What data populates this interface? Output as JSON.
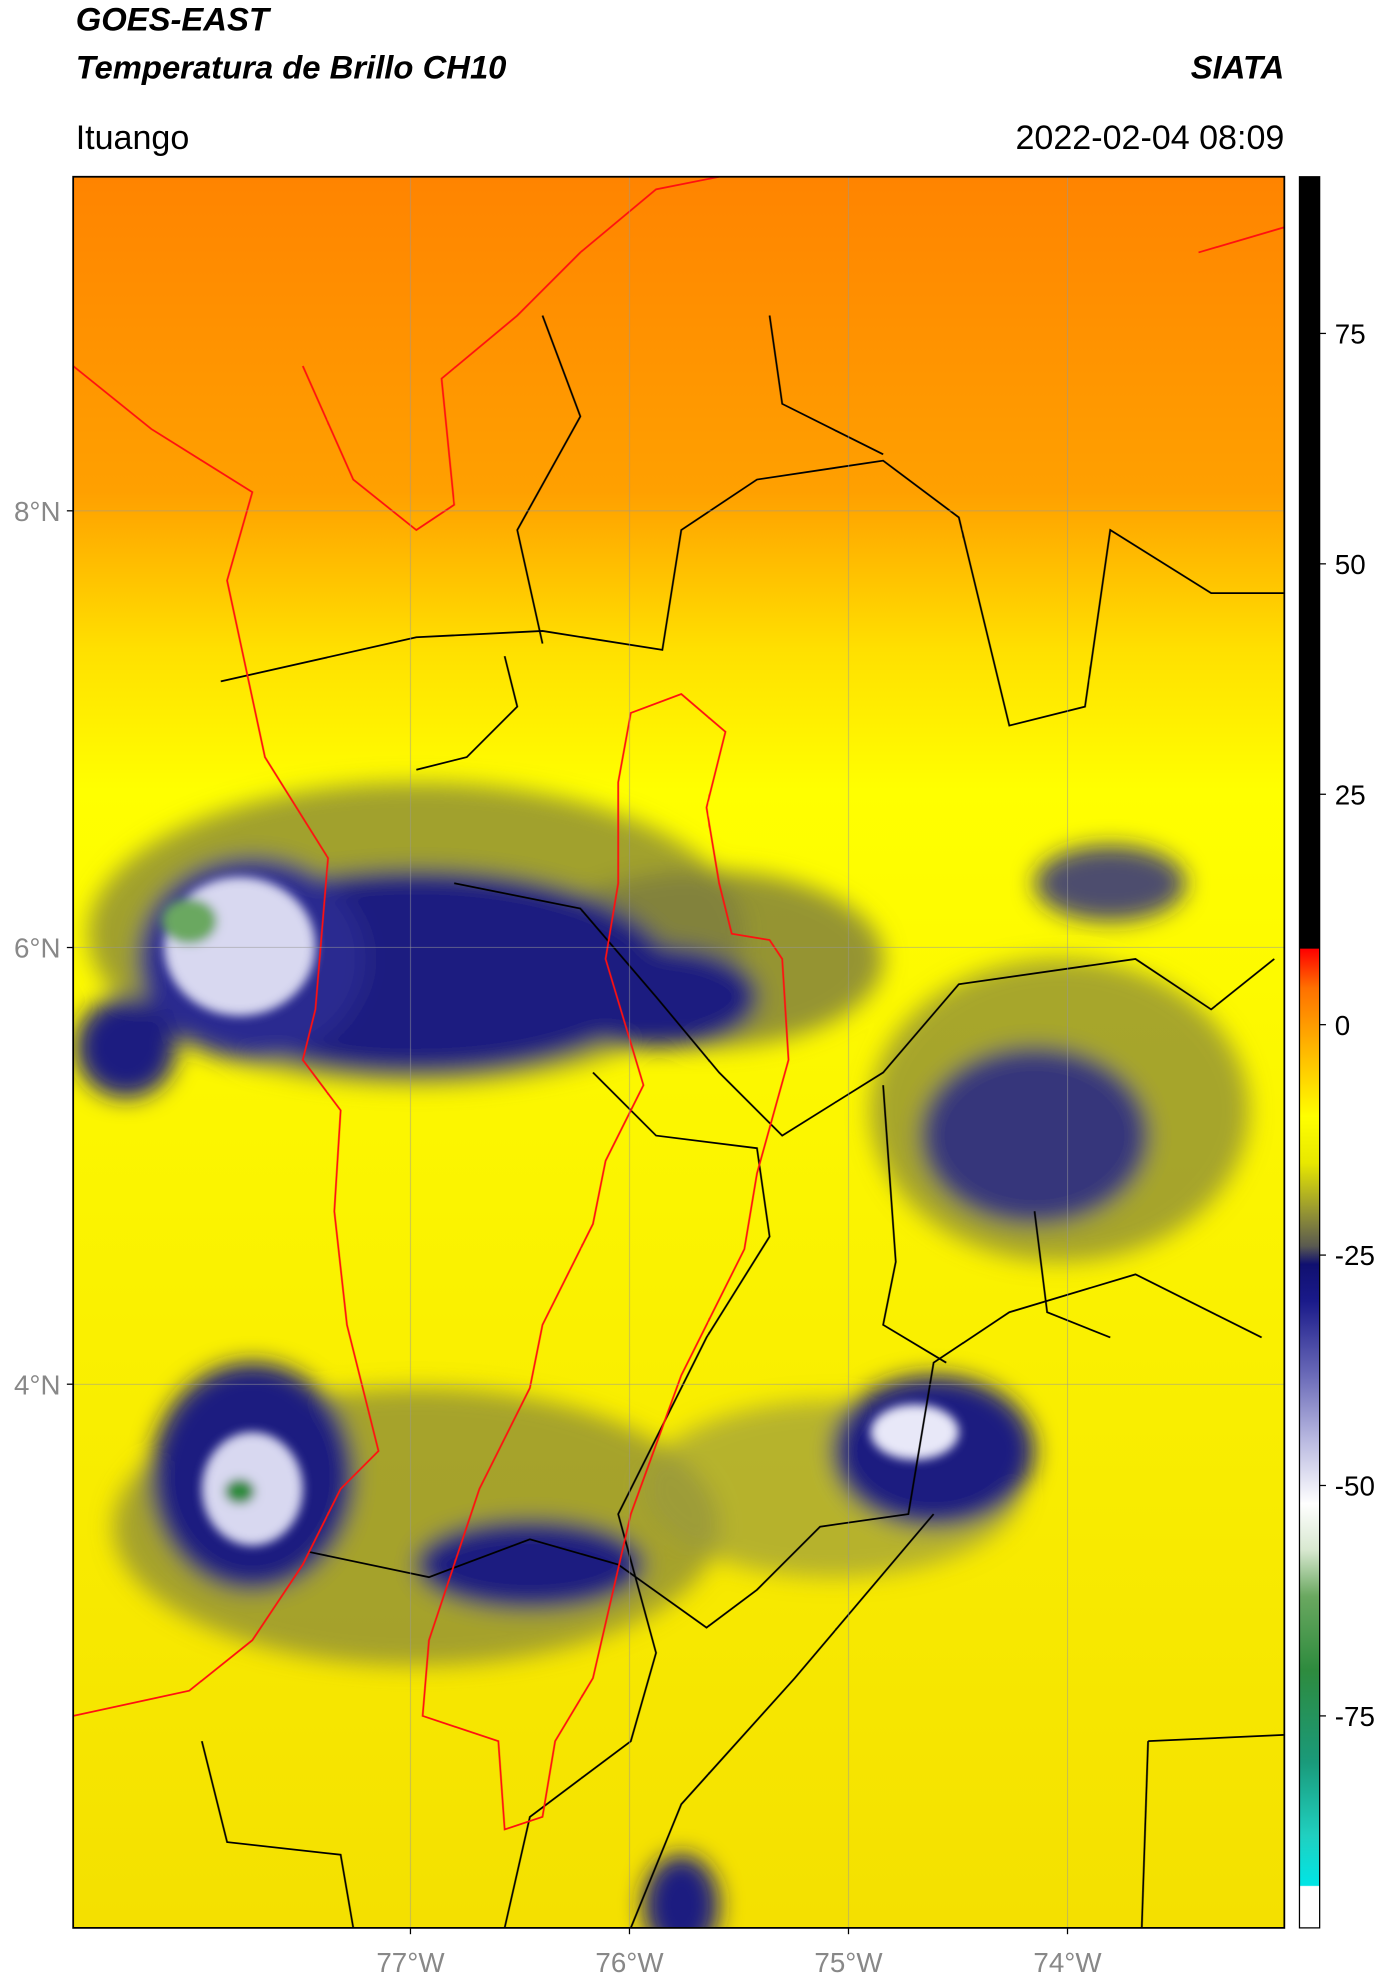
{
  "header": {
    "title_line1": "GOES-EAST",
    "title_line2": "Temperatura de Brillo CH10",
    "brand": "SIATA",
    "location": "Ituango",
    "datetime": "2022-02-04 08:09"
  },
  "chart_data": {
    "type": "map",
    "xlim": [
      -78.54,
      -73.01
    ],
    "ylim": [
      1.51,
      9.53
    ],
    "xticks": [
      {
        "value": -77,
        "label": "77°W"
      },
      {
        "value": -76,
        "label": "76°W"
      },
      {
        "value": -75,
        "label": "75°W"
      },
      {
        "value": -74,
        "label": "74°W"
      }
    ],
    "yticks": [
      {
        "value": 4,
        "label": "4°N"
      },
      {
        "value": 6,
        "label": "6°N"
      },
      {
        "value": 8,
        "label": "8°N"
      }
    ],
    "grid": true,
    "colorbar": {
      "lim": [
        -98,
        92
      ],
      "ticks": [
        -75,
        -50,
        -25,
        0,
        25,
        50,
        75
      ],
      "colormap": [
        {
          "value": -98,
          "color": "#ffffff"
        },
        {
          "value": -93.5,
          "color": "#ffffff"
        },
        {
          "value": -93.4,
          "color": "#00e5e5"
        },
        {
          "value": -88,
          "color": "#20d0c0"
        },
        {
          "value": -80,
          "color": "#1a9a7a"
        },
        {
          "value": -70,
          "color": "#2e8b3e"
        },
        {
          "value": -62,
          "color": "#6aa860"
        },
        {
          "value": -57,
          "color": "#d8e8d0"
        },
        {
          "value": -52,
          "color": "#ffffff"
        },
        {
          "value": -45,
          "color": "#b8b8e0"
        },
        {
          "value": -38,
          "color": "#6a6ab8"
        },
        {
          "value": -30,
          "color": "#1a1a8a"
        },
        {
          "value": -26,
          "color": "#101070"
        },
        {
          "value": -24,
          "color": "#5a5a50"
        },
        {
          "value": -20,
          "color": "#9a9a30"
        },
        {
          "value": -15,
          "color": "#e8e800"
        },
        {
          "value": -10,
          "color": "#ffff00"
        },
        {
          "value": -2,
          "color": "#ffb000"
        },
        {
          "value": 4,
          "color": "#ff7000"
        },
        {
          "value": 7,
          "color": "#ff2000"
        },
        {
          "value": 8.2,
          "color": "#ff0000"
        },
        {
          "value": 8.3,
          "color": "#000000"
        },
        {
          "value": 92,
          "color": "#000000"
        }
      ]
    }
  }
}
